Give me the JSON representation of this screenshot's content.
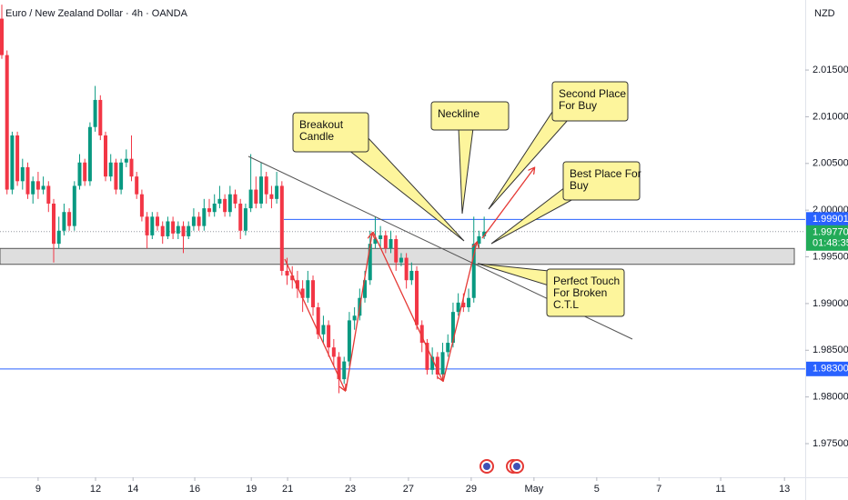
{
  "chart_data": {
    "type": "candlestick",
    "title": "Euro / New Zealand Dollar · 4h · OANDA",
    "currency": "NZD",
    "up_color": "#089981",
    "down_color": "#f23645",
    "open": [
      2.0205,
      2.0166,
      2.0022,
      2.008,
      2.0031,
      2.0046,
      2.0017,
      2.0031,
      2.0022,
      2.0026,
      2.0007,
      1.9964,
      1.9978,
      1.9998,
      1.9983,
      2.0026,
      2.0051,
      2.0031,
      2.0089,
      2.0118,
      2.008,
      2.0036,
      2.0051,
      2.0022,
      2.0051,
      2.0055,
      2.0036,
      2.0017,
      1.9993,
      1.9973,
      1.9993,
      1.9983,
      1.9972,
      1.9988,
      1.9975,
      1.9983,
      1.9972,
      1.9983,
      1.9993,
      1.9983,
      2.0002,
      1.9998,
      2.0007,
      2.0012,
      1.9998,
      2.0017,
      2.0007,
      1.9978,
      2.0002,
      2.0022,
      2.0007,
      2.0036,
      2.0017,
      2.0012,
      2.0026,
      1.9935,
      1.993,
      1.9925,
      1.9916,
      1.9906,
      1.9925,
      1.9896,
      1.9867,
      1.9877,
      1.9853,
      1.9843,
      1.9819,
      1.9838,
      1.9882,
      1.9887,
      1.9906,
      1.9925,
      1.9964,
      1.9969,
      1.9973,
      1.9959,
      1.9969,
      1.9944,
      1.9949,
      1.9925,
      1.9935,
      1.9877,
      1.9858,
      1.9829,
      1.9843,
      1.9824,
      1.9848,
      1.9858,
      1.9891,
      1.9901,
      1.9896,
      1.9906,
      1.9964,
      1.9972
    ],
    "high": [
      2.022,
      2.0171,
      2.0084,
      2.0084,
      2.0055,
      2.0051,
      2.0036,
      2.0041,
      2.0036,
      2.0031,
      2.0012,
      1.9993,
      2.0007,
      2.0002,
      2.0031,
      2.006,
      2.0055,
      2.0094,
      2.0133,
      2.0123,
      2.0084,
      2.006,
      2.0055,
      2.0055,
      2.0065,
      2.008,
      2.0041,
      2.0022,
      1.9998,
      1.9998,
      1.9998,
      1.9988,
      1.9993,
      1.9993,
      1.9988,
      1.9988,
      1.9988,
      2.0002,
      1.9998,
      2.0012,
      2.0012,
      2.0017,
      2.0026,
      2.0017,
      2.0026,
      2.0022,
      2.0012,
      2.0007,
      2.006,
      2.0036,
      2.0051,
      2.0041,
      2.0026,
      2.0041,
      2.0031,
      1.9949,
      1.994,
      1.9935,
      1.9925,
      1.9935,
      1.993,
      1.9901,
      1.9887,
      1.9882,
      1.9862,
      1.9848,
      1.9843,
      1.9891,
      1.9896,
      1.9916,
      1.9935,
      1.9978,
      1.9993,
      1.9983,
      1.9978,
      1.9978,
      1.9973,
      1.9954,
      1.9954,
      1.9944,
      1.994,
      1.9882,
      1.9862,
      1.9853,
      1.9848,
      1.9858,
      1.9867,
      1.9901,
      1.9911,
      1.9911,
      1.9916,
      1.9993,
      1.9978,
      1.9993
    ],
    "low": [
      2.0162,
      2.0017,
      2.0017,
      2.0026,
      2.0022,
      2.0012,
      2.0007,
      2.0012,
      2.0017,
      1.9998,
      1.9944,
      1.9959,
      1.9973,
      1.9978,
      1.9978,
      2.0022,
      2.0026,
      2.0026,
      2.0084,
      2.0075,
      2.0031,
      2.0031,
      2.0017,
      2.0017,
      2.0046,
      2.0031,
      2.0012,
      1.9988,
      1.9959,
      1.9969,
      1.9978,
      1.9964,
      1.9969,
      1.9969,
      1.9969,
      1.9954,
      1.9969,
      1.9978,
      1.9978,
      1.9978,
      1.9993,
      1.9993,
      2.0002,
      1.9993,
      1.9993,
      2.0002,
      1.9969,
      1.9973,
      1.9998,
      2.0002,
      2.0002,
      2.0007,
      2.0002,
      2.0007,
      1.993,
      1.992,
      1.9916,
      1.9906,
      1.9891,
      1.9901,
      1.9887,
      1.9862,
      1.9858,
      1.9843,
      1.9833,
      1.9804,
      1.9814,
      1.9833,
      1.9872,
      1.9882,
      1.9901,
      1.992,
      1.9959,
      1.9959,
      1.9954,
      1.9954,
      1.9935,
      1.994,
      1.9916,
      1.992,
      1.9872,
      1.9848,
      1.9824,
      1.9824,
      1.9819,
      1.9819,
      1.9843,
      1.9853,
      1.9887,
      1.9891,
      1.9891,
      1.9901,
      1.9959,
      1.9969
    ],
    "close": [
      2.0166,
      2.0022,
      2.008,
      2.0031,
      2.0046,
      2.0017,
      2.0031,
      2.0022,
      2.0026,
      2.0007,
      1.9964,
      1.9978,
      1.9998,
      1.9983,
      2.0026,
      2.0051,
      2.0031,
      2.0089,
      2.0118,
      2.008,
      2.0036,
      2.0051,
      2.0022,
      2.0051,
      2.0055,
      2.0036,
      2.0017,
      1.9993,
      1.9973,
      1.9993,
      1.9983,
      1.9972,
      1.9988,
      1.9975,
      1.9983,
      1.9972,
      1.9983,
      1.9993,
      1.9983,
      2.0002,
      1.9998,
      2.0007,
      2.0012,
      1.9998,
      2.0017,
      2.0007,
      1.9978,
      2.0002,
      2.0022,
      2.0007,
      2.0036,
      2.0017,
      2.0012,
      2.0026,
      1.9935,
      1.993,
      1.9925,
      1.9916,
      1.9906,
      1.9925,
      1.9896,
      1.9867,
      1.9877,
      1.9853,
      1.9843,
      1.9819,
      1.9838,
      1.9882,
      1.9887,
      1.9906,
      1.9925,
      1.9964,
      1.9969,
      1.9973,
      1.9959,
      1.9969,
      1.9944,
      1.9949,
      1.9925,
      1.9935,
      1.9877,
      1.9858,
      1.9829,
      1.9843,
      1.9824,
      1.9848,
      1.9858,
      1.9891,
      1.9901,
      1.9896,
      1.9906,
      1.9964,
      1.9972,
      1.9977
    ],
    "xlim": [
      -0.35,
      154.9
    ],
    "xticks": [
      {
        "value": 7,
        "label": "9"
      },
      {
        "value": 18.07,
        "label": "12"
      },
      {
        "value": 25.3,
        "label": "14"
      },
      {
        "value": 37.2,
        "label": "16"
      },
      {
        "value": 48.1,
        "label": "19"
      },
      {
        "value": 55.1,
        "label": "21"
      },
      {
        "value": 67.2,
        "label": "23"
      },
      {
        "value": 78.4,
        "label": "27"
      },
      {
        "value": 90.5,
        "label": "29"
      },
      {
        "value": 102.6,
        "label": "May"
      },
      {
        "value": 114.7,
        "label": "5"
      },
      {
        "value": 126.7,
        "label": "7"
      },
      {
        "value": 138.6,
        "label": "11"
      },
      {
        "value": 150.9,
        "label": "13"
      }
    ],
    "ylim": [
      1.9714,
      2.0225
    ],
    "yticks": [
      {
        "value": 1.975,
        "label": "1.97500"
      },
      {
        "value": 1.98,
        "label": "1.98000"
      },
      {
        "value": 1.985,
        "label": "1.98500"
      },
      {
        "value": 1.99,
        "label": "1.99000"
      },
      {
        "value": 1.995,
        "label": "1.99500"
      },
      {
        "value": 2.0,
        "label": "2.00000"
      },
      {
        "value": 2.005,
        "label": "2.00500"
      },
      {
        "value": 2.01,
        "label": "2.01000"
      },
      {
        "value": 2.015,
        "label": "2.01500"
      }
    ],
    "price_lines": [
      {
        "price": 1.99901,
        "color": "#2962ff"
      },
      {
        "price": {
          "value": 1.983,
          "label": "1.98300"
        },
        "color": "#2962ff"
      }
    ],
    "last_price": {
      "value": 1.9977,
      "label": "1.99770"
    },
    "countdown": "01:48:35",
    "last_price_color": "#22ab58",
    "zone": [
      1.9942,
      1.9959
    ],
    "annotations": [
      {
        "lines": [
          "Breakout",
          "Candle"
        ]
      },
      {
        "lines": [
          "Neckline"
        ]
      },
      {
        "lines": [
          "Second Place",
          "For Buy"
        ]
      },
      {
        "lines": [
          "Best Place For",
          "Buy"
        ]
      },
      {
        "lines": [
          "Perfect Touch",
          "For Broken",
          "C.T.L"
        ]
      }
    ]
  }
}
